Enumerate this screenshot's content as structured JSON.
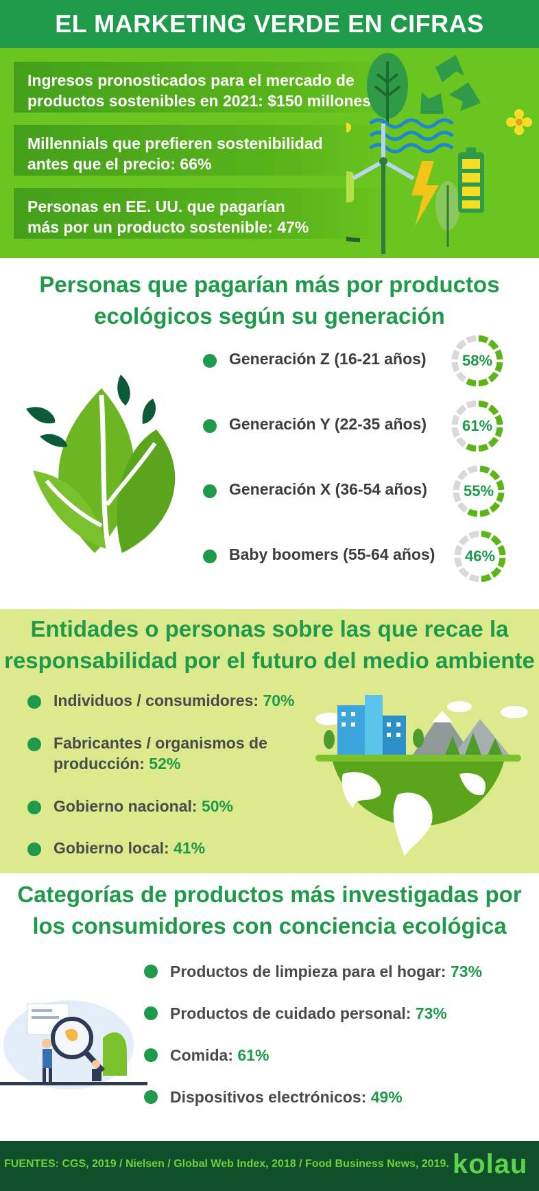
{
  "header": {
    "title": "EL MARKETING VERDE EN CIFRAS"
  },
  "top_stats": [
    {
      "line1": "Ingresos pronosticados para el mercado de",
      "line2": "productos sostenibles en 2021: $150 millones"
    },
    {
      "line1": "Millennials que prefieren sostenibilidad",
      "line2": "antes que el precio: 66%"
    },
    {
      "line1": "Personas en EE. UU. que pagarían",
      "line2": "más por un producto sostenible: 47%"
    }
  ],
  "generations": {
    "title_line1": "Personas que pagarían más por productos",
    "title_line2": "ecológicos según su generación",
    "items": [
      {
        "label": "Generación Z (16-21 años)",
        "value_text": "58%",
        "value": 58
      },
      {
        "label": "Generación Y (22-35 años)",
        "value_text": "61%",
        "value": 61
      },
      {
        "label": "Generación X (36-54 años)",
        "value_text": "55%",
        "value": 55
      },
      {
        "label": "Baby boomers (55-64 años)",
        "value_text": "46%",
        "value": 46
      }
    ]
  },
  "responsibility": {
    "title_line1": "Entidades o personas sobre las que recae la",
    "title_line2": "responsabilidad por el futuro del medio ambiente",
    "items": [
      {
        "label": "Individuos / consumidores: ",
        "pct": "70%"
      },
      {
        "label_line1": "Fabricantes / organismos de",
        "label": "producción: ",
        "pct": "52%"
      },
      {
        "label": "Gobierno nacional: ",
        "pct": "50%"
      },
      {
        "label": "Gobierno local: ",
        "pct": "41%"
      }
    ]
  },
  "categories": {
    "title_line1": "Categorías de productos más investigadas por",
    "title_line2": "los consumidores con conciencia ecológica",
    "items": [
      {
        "label": "Productos de limpieza para el hogar: ",
        "pct": "73%"
      },
      {
        "label": "Productos de cuidado personal: ",
        "pct": "73%"
      },
      {
        "label": "Comida: ",
        "pct": "61%"
      },
      {
        "label": "Dispositivos electrónicos: ",
        "pct": "49%"
      }
    ]
  },
  "footer": {
    "sources": "FUENTES: CGS, 2019 / Nielsen / Global Web Index, 2018 / Food Business News, 2019.",
    "brand": "kolau"
  },
  "colors": {
    "dark_green": "#1f9a4a",
    "lime": "#6bc520",
    "pale_lime": "#dde98d",
    "footer_bg": "#0f4f2a",
    "ring_track": "#d9d9d9",
    "ring_fill": "#5cb517"
  }
}
